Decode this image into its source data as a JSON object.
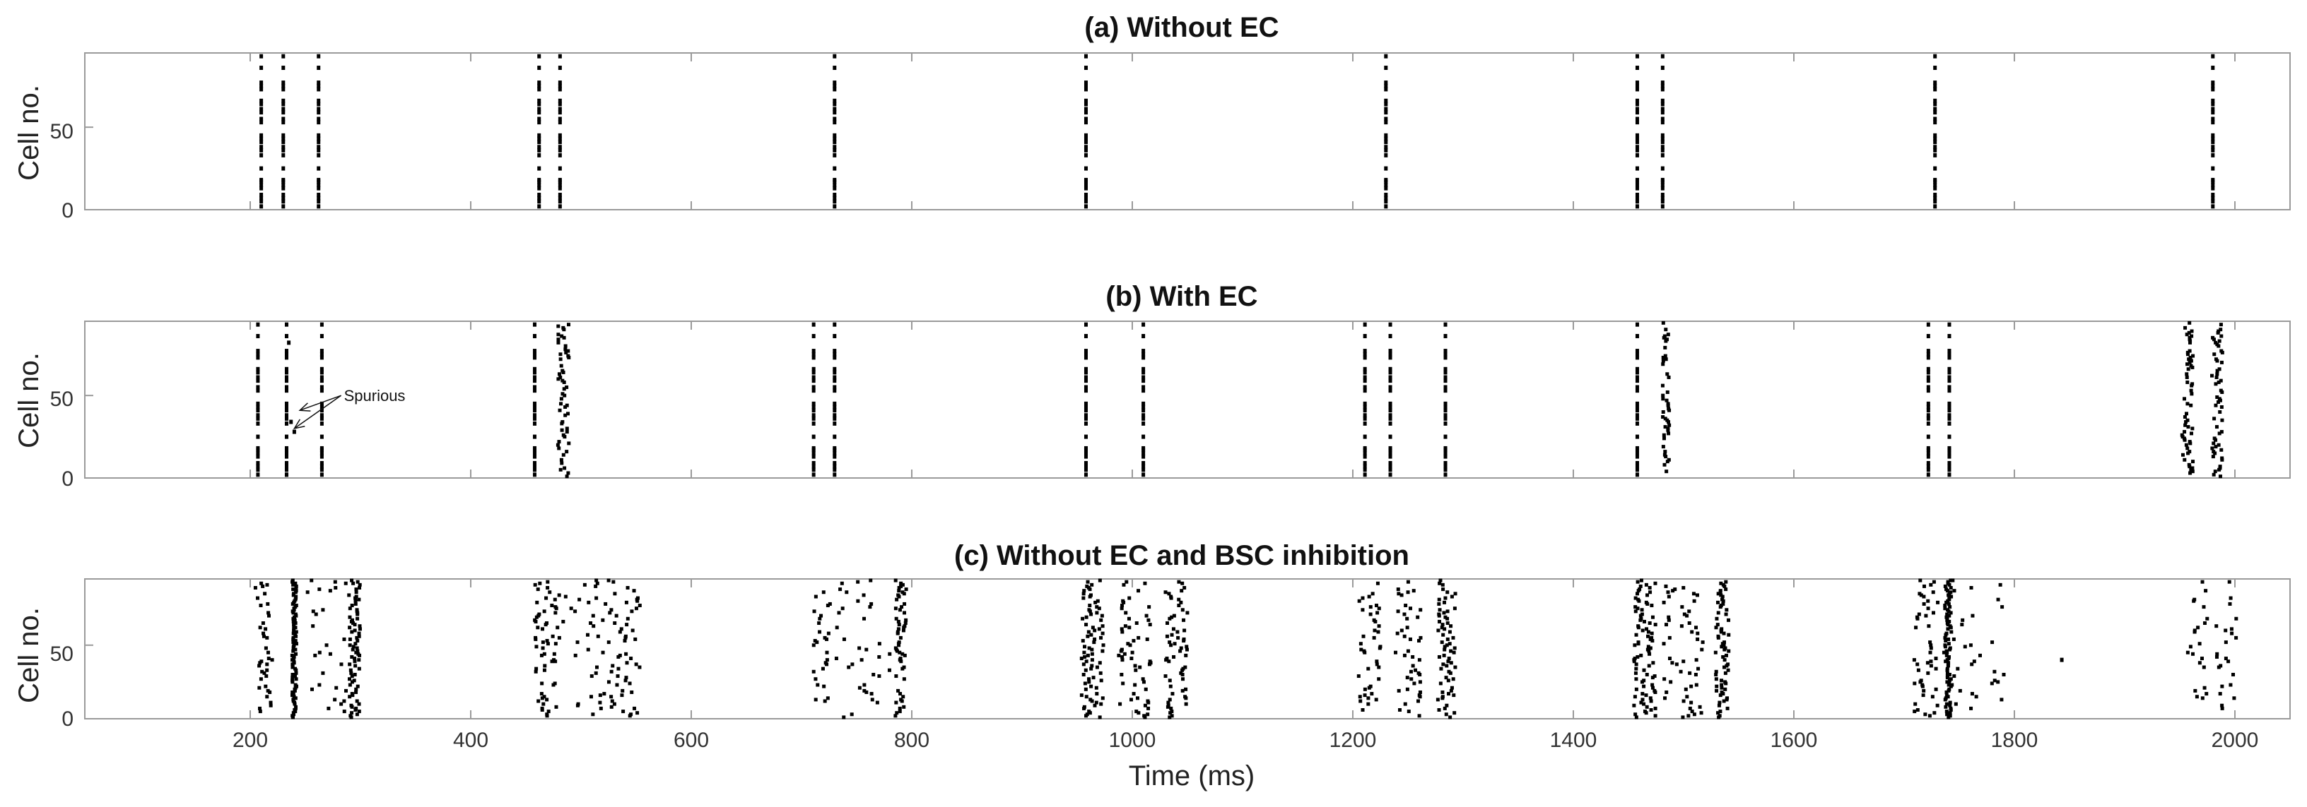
{
  "chart_data": [
    {
      "type": "raster",
      "title": "(a) Without EC",
      "ylabel": "Cell no.",
      "xlabel": "",
      "xlim": [
        50,
        2050
      ],
      "ylim": [
        0,
        95
      ],
      "xticks": [
        200,
        400,
        600,
        800,
        1000,
        1200,
        1400,
        1600,
        1800,
        2000
      ],
      "show_xtick_labels": false,
      "yticks": [
        0,
        50
      ],
      "ytick_labels": [
        "0",
        "50"
      ],
      "bursts": [
        {
          "time": 210,
          "width": 0,
          "density": 0.5
        },
        {
          "time": 230,
          "width": 0,
          "density": 0.5
        },
        {
          "time": 262,
          "width": 0,
          "density": 0.5
        },
        {
          "time": 462,
          "width": 0,
          "density": 0.5
        },
        {
          "time": 481,
          "width": 0,
          "density": 0.5
        },
        {
          "time": 730,
          "width": 0,
          "density": 0.5
        },
        {
          "time": 958,
          "width": 0,
          "density": 0.5
        },
        {
          "time": 1230,
          "width": 0,
          "density": 0.5
        },
        {
          "time": 1458,
          "width": 0,
          "density": 0.5
        },
        {
          "time": 1481,
          "width": 0,
          "density": 0.5
        },
        {
          "time": 1728,
          "width": 0,
          "density": 0.5
        },
        {
          "time": 1980,
          "width": 0,
          "density": 0.5
        }
      ],
      "isolated_spikes": [],
      "annotations": []
    },
    {
      "type": "raster",
      "title": "(b) With EC",
      "ylabel": "Cell no.",
      "xlabel": "",
      "xlim": [
        50,
        2050
      ],
      "ylim": [
        0,
        95
      ],
      "xticks": [
        200,
        400,
        600,
        800,
        1000,
        1200,
        1400,
        1600,
        1800,
        2000
      ],
      "show_xtick_labels": false,
      "yticks": [
        0,
        50
      ],
      "ytick_labels": [
        "0",
        "50"
      ],
      "bursts": [
        {
          "time": 207,
          "width": 0,
          "density": 0.5
        },
        {
          "time": 233,
          "width": 0,
          "density": 0.5
        },
        {
          "time": 265,
          "width": 0,
          "density": 0.5
        },
        {
          "time": 458,
          "width": 0,
          "density": 0.5
        },
        {
          "time": 484,
          "width": 5,
          "density": 0.55
        },
        {
          "time": 711,
          "width": 0,
          "density": 0.5
        },
        {
          "time": 730,
          "width": 0,
          "density": 0.5
        },
        {
          "time": 958,
          "width": 0,
          "density": 0.5
        },
        {
          "time": 1010,
          "width": 0,
          "density": 0.5
        },
        {
          "time": 1211,
          "width": 0,
          "density": 0.5
        },
        {
          "time": 1234,
          "width": 0,
          "density": 0.5
        },
        {
          "time": 1284,
          "width": 0,
          "density": 0.5
        },
        {
          "time": 1458,
          "width": 0,
          "density": 0.5
        },
        {
          "time": 1484,
          "width": 3,
          "density": 0.55
        },
        {
          "time": 1722,
          "width": 0,
          "density": 0.5
        },
        {
          "time": 1741,
          "width": 0,
          "density": 0.5
        },
        {
          "time": 1957,
          "width": 5,
          "density": 0.55
        },
        {
          "time": 1984,
          "width": 5,
          "density": 0.55
        }
      ],
      "isolated_spikes": [
        {
          "time": 235,
          "cell": 82
        },
        {
          "time": 237,
          "cell": 34
        },
        {
          "time": 240,
          "cell": 28
        },
        {
          "time": 233,
          "cell": 2
        }
      ],
      "annotations": [
        {
          "text": "Spurious",
          "time": 285,
          "cell": 50,
          "arrow_to": [
            {
              "time": 245,
              "cell": 41
            },
            {
              "time": 240,
              "cell": 30
            }
          ]
        }
      ]
    },
    {
      "type": "raster",
      "title": "(c) Without EC and BSC inhibition",
      "ylabel": "Cell no.",
      "xlabel": "Time (ms)",
      "xlim": [
        50,
        2050
      ],
      "ylim": [
        0,
        95
      ],
      "xticks": [
        200,
        400,
        600,
        800,
        1000,
        1200,
        1400,
        1600,
        1800,
        2000
      ],
      "xtick_labels": [
        "200",
        "400",
        "600",
        "800",
        "1000",
        "1200",
        "1400",
        "1600",
        "1800",
        "2000"
      ],
      "show_xtick_labels": true,
      "yticks": [
        0,
        50
      ],
      "ytick_labels": [
        "0",
        "50"
      ],
      "bursts": [
        {
          "time": 212,
          "width": 8,
          "density": 0.35
        },
        {
          "time": 240,
          "width": 2,
          "density": 0.95
        },
        {
          "time": 270,
          "width": 20,
          "density": 0.4
        },
        {
          "time": 295,
          "width": 5,
          "density": 0.8
        },
        {
          "time": 468,
          "width": 10,
          "density": 0.6
        },
        {
          "time": 500,
          "width": 25,
          "density": 0.45
        },
        {
          "time": 540,
          "width": 15,
          "density": 0.55
        },
        {
          "time": 718,
          "width": 8,
          "density": 0.35
        },
        {
          "time": 755,
          "width": 25,
          "density": 0.35
        },
        {
          "time": 790,
          "width": 5,
          "density": 0.6
        },
        {
          "time": 964,
          "width": 10,
          "density": 0.8
        },
        {
          "time": 1002,
          "width": 15,
          "density": 0.55
        },
        {
          "time": 1040,
          "width": 10,
          "density": 0.7
        },
        {
          "time": 1215,
          "width": 10,
          "density": 0.4
        },
        {
          "time": 1250,
          "width": 12,
          "density": 0.5
        },
        {
          "time": 1285,
          "width": 8,
          "density": 0.8
        },
        {
          "time": 1465,
          "width": 10,
          "density": 0.9
        },
        {
          "time": 1500,
          "width": 18,
          "density": 0.6
        },
        {
          "time": 1535,
          "width": 6,
          "density": 0.7
        },
        {
          "time": 1720,
          "width": 12,
          "density": 0.45
        },
        {
          "time": 1740,
          "width": 3,
          "density": 0.95
        },
        {
          "time": 1765,
          "width": 30,
          "density": 0.45
        },
        {
          "time": 1965,
          "width": 10,
          "density": 0.35
        },
        {
          "time": 1992,
          "width": 10,
          "density": 0.35
        }
      ],
      "isolated_spikes": [
        {
          "time": 1843,
          "cell": 40
        }
      ],
      "annotations": []
    }
  ]
}
